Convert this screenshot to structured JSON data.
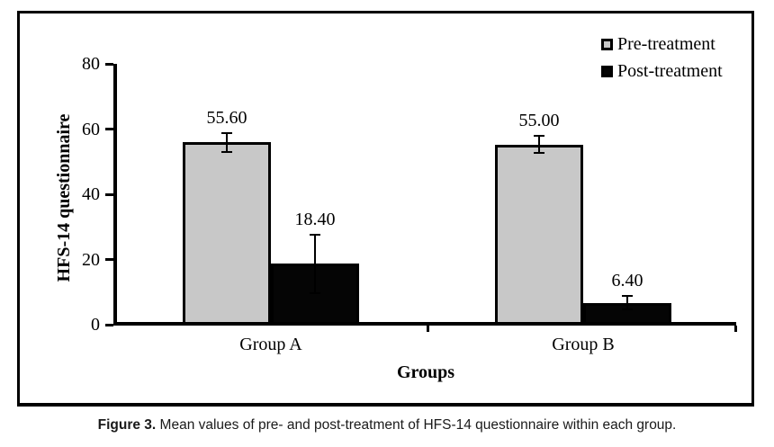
{
  "figure": {
    "caption_prefix": "Figure 3.",
    "caption_rest": " Mean values of pre- and post-treatment of HFS-14 questionnaire within each group."
  },
  "chart_data": {
    "type": "bar",
    "title": "",
    "xlabel": "Groups",
    "ylabel": "HFS-14 questionnaire",
    "categories": [
      "Group A",
      "Group B"
    ],
    "series": [
      {
        "name": "Pre-treatment",
        "color": "#c8c8c8",
        "values": [
          55.6,
          55.0
        ],
        "errors": [
          2.8,
          2.6
        ],
        "value_labels": [
          "55.60",
          "55.00"
        ]
      },
      {
        "name": "Post-treatment",
        "color": "#050505",
        "values": [
          18.4,
          6.4
        ],
        "errors": [
          8.9,
          2.1
        ],
        "value_labels": [
          "18.40",
          "6.40"
        ]
      }
    ],
    "ylim": [
      0,
      80
    ],
    "yticks": [
      0,
      20,
      40,
      60,
      80
    ],
    "grid": false,
    "legend_position": "top-right",
    "error_bars": true
  }
}
